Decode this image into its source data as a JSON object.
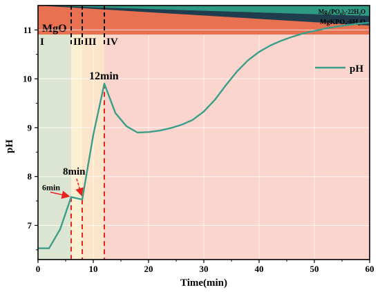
{
  "chart_data": {
    "type": "line",
    "xlabel": "Time(min)",
    "ylabel": "pH",
    "xlim": [
      0,
      60
    ],
    "ylim": [
      6.3,
      11.5
    ],
    "x_ticks": [
      "0",
      "10",
      "20",
      "30",
      "40",
      "50",
      "60"
    ],
    "y_ticks": [
      "7",
      "8",
      "9",
      "10",
      "11"
    ],
    "grid": true,
    "legend": {
      "position": "top-right",
      "label": "pH"
    },
    "series": [
      {
        "name": "pH",
        "color": "#3a9e8a",
        "x": [
          0,
          2,
          4,
          6,
          8,
          10,
          12,
          14,
          16,
          18,
          20,
          22,
          24,
          26,
          28,
          30,
          32,
          34,
          36,
          38,
          40,
          42,
          44,
          46,
          48,
          50,
          52,
          54,
          56,
          58,
          60
        ],
        "y": [
          6.53,
          6.53,
          6.92,
          7.58,
          7.53,
          8.85,
          9.9,
          9.3,
          9.03,
          8.9,
          8.91,
          8.94,
          8.99,
          9.06,
          9.16,
          9.33,
          9.57,
          9.87,
          10.15,
          10.38,
          10.55,
          10.68,
          10.78,
          10.86,
          10.93,
          10.98,
          11.03,
          11.07,
          11.1,
          11.13,
          11.15
        ]
      }
    ],
    "stage_regions": [
      {
        "label": "I",
        "x0": 0,
        "x1": 6,
        "color": "#dce5d2"
      },
      {
        "label": "II",
        "x0": 6,
        "x1": 8,
        "color": "#fcf0d3"
      },
      {
        "label": "III",
        "x0": 8,
        "x1": 12,
        "color": "#fde5cb"
      },
      {
        "label": "IV",
        "x0": 12,
        "x1": 60,
        "color": "#f9d5cd"
      }
    ],
    "markers": [
      {
        "x": 6,
        "y": 7.58,
        "label": "6min"
      },
      {
        "x": 8,
        "y": 7.53,
        "label": "8min"
      },
      {
        "x": 12,
        "y": 9.9,
        "label": "12min"
      }
    ],
    "phase_bands": [
      {
        "label": "MgO",
        "color": "#e87152"
      },
      {
        "label": "MgKPO₄·6H₂O",
        "color": "#1f3d4d"
      },
      {
        "label": "Mg₃(PO₄)₂·22H₂O",
        "color": "#2f9a84"
      }
    ]
  }
}
